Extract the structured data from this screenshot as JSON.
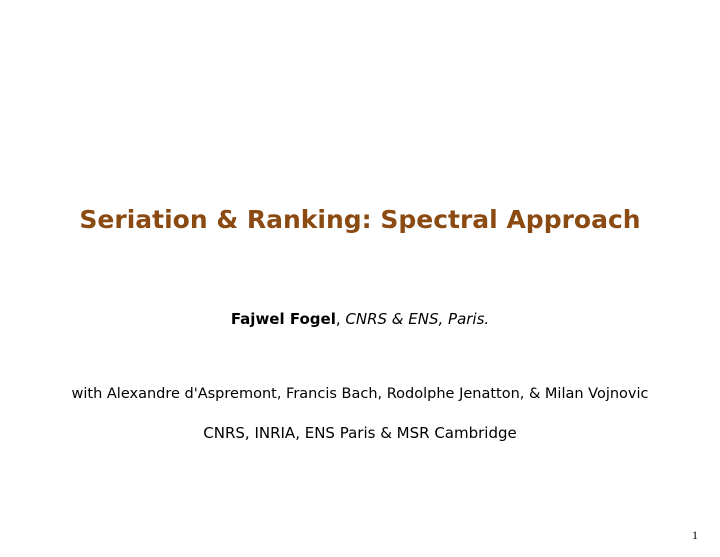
{
  "title": {
    "text": "Seriation & Ranking: Spectral Approach",
    "color": "#8a4a12",
    "fontsize": 25
  },
  "author": {
    "name": "Fajwel Fogel",
    "separator": ", ",
    "affiliation": "CNRS & ENS, Paris."
  },
  "collaborators": "with Alexandre d'Aspremont, Francis Bach, Rodolphe Jenatton, & Milan Vojnovic",
  "affiliations_line": "CNRS, INRIA, ENS Paris & MSR Cambridge",
  "page_number": "1",
  "background_color": "#ffffff",
  "text_color": "#000000"
}
